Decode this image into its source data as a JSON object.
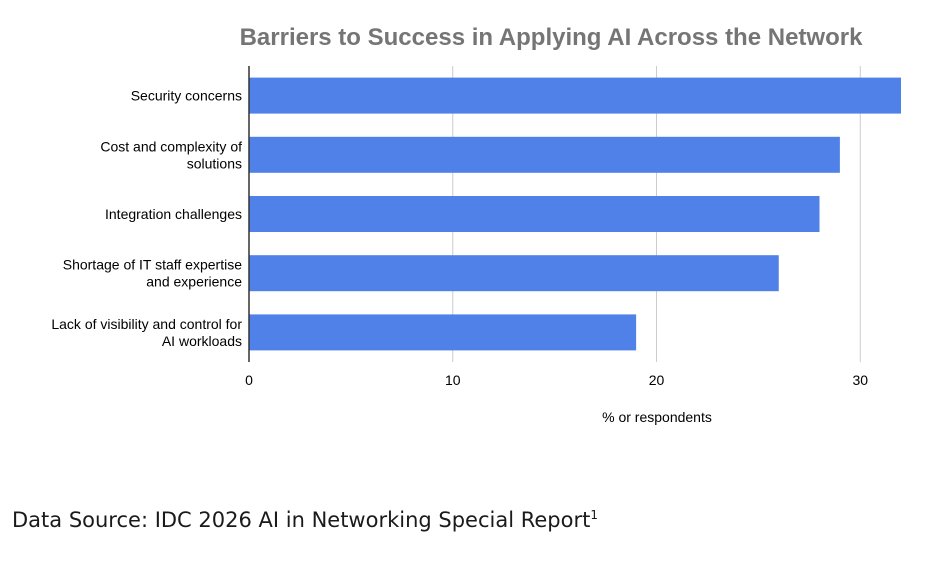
{
  "chart_data": {
    "type": "bar",
    "orientation": "horizontal",
    "title": "Barriers to Success in Applying AI Across the Network",
    "categories": [
      [
        "Security concerns"
      ],
      [
        "Cost and complexity of",
        "solutions"
      ],
      [
        "Integration challenges"
      ],
      [
        "Shortage of IT staff expertise",
        "and experience"
      ],
      [
        "Lack of visibility and control for",
        "AI workloads"
      ]
    ],
    "values": [
      32,
      29,
      28,
      26,
      19
    ],
    "xlabel": "% or respondents",
    "ylabel": "",
    "xlim": [
      0,
      32
    ],
    "xticks": [
      0,
      10,
      20,
      30
    ],
    "grid": true,
    "bar_color": "#4f81e8",
    "grid_color": "#cccccc",
    "axis_color": "#333333"
  },
  "footer": {
    "source_text": "Data Source: IDC 2026 AI in Networking Special Report",
    "source_superscript": "1"
  }
}
